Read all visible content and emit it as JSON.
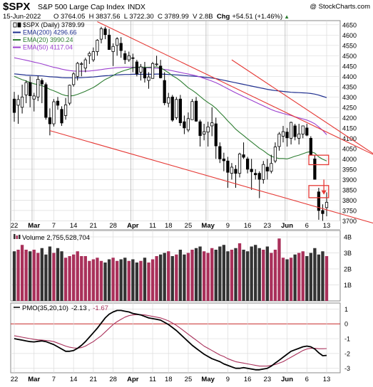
{
  "header": {
    "symbol": "$SPX",
    "name": "S&P 500 Large Cap Index",
    "exchange": "INDX",
    "copyright": "@ StockCharts.com",
    "date": "15-Jun-2022",
    "quote": "O 3764.05  H 3837.56  L 3722.30  C 3789.99  V 2.8B  ",
    "chg_label": "Chg",
    "chg_value": "+54.51 (+1.46%)",
    "chg_arrow": "▲"
  },
  "colors": {
    "up": "#ffffff",
    "down": "#000000",
    "ema200": "#1f2f8f",
    "ema20": "#2e7d32",
    "ema50": "#9b3fcf",
    "trend": "#e53935",
    "vol_up": "#a9305a",
    "vol_down": "#333333",
    "pmo": "#000000",
    "pmo_signal": "#a9305a",
    "zero": "#c62828",
    "grid": "#dcdcdc"
  },
  "chart_data": [
    {
      "type": "candlestick",
      "title": "$SPX S&P 500 Large Cap Index INDX",
      "legend": [
        {
          "label": "$SPX (Daily) 3789.99",
          "icon": "candle"
        },
        {
          "label": "EMA(200) 4296.66",
          "color": "#1f2f8f"
        },
        {
          "label": "EMA(20) 3990.24",
          "color": "#2e7d32"
        },
        {
          "label": "EMA(50) 4117.04",
          "color": "#9b3fcf"
        }
      ],
      "ylim": [
        3660,
        4670
      ],
      "yticks": [
        3700,
        3750,
        3800,
        3850,
        3900,
        3950,
        4000,
        4050,
        4100,
        4150,
        4200,
        4250,
        4300,
        4350,
        4400,
        4450,
        4500,
        4550,
        4600,
        4650
      ],
      "x_labels": [
        "22",
        "Mar",
        "7",
        "14",
        "21",
        "28",
        "Apr",
        "11",
        "18",
        "25",
        "May",
        "9",
        "16",
        "23",
        "Jun",
        "6",
        "13"
      ],
      "x_label_days": [
        0,
        5,
        10,
        15,
        20,
        25,
        30,
        35,
        39,
        44,
        49,
        54,
        59,
        64,
        69,
        74,
        79
      ],
      "month_boundaries": [
        5,
        30,
        49,
        69
      ],
      "ohlc": [
        [
          4290,
          4325,
          4180,
          4225
        ],
        [
          4260,
          4310,
          4170,
          4288
        ],
        [
          4250,
          4360,
          4220,
          4300
        ],
        [
          4310,
          4380,
          4270,
          4370
        ],
        [
          4370,
          4400,
          4250,
          4306
        ],
        [
          4290,
          4320,
          4230,
          4305
        ],
        [
          4300,
          4402,
          4280,
          4386
        ],
        [
          4380,
          4390,
          4270,
          4363
        ],
        [
          4360,
          4370,
          4190,
          4201
        ],
        [
          4200,
          4245,
          4114,
          4170
        ],
        [
          4170,
          4290,
          4157,
          4277
        ],
        [
          4280,
          4300,
          4238,
          4260
        ],
        [
          4240,
          4255,
          4160,
          4174
        ],
        [
          4210,
          4295,
          4190,
          4262
        ],
        [
          4270,
          4360,
          4260,
          4357
        ],
        [
          4360,
          4420,
          4350,
          4412
        ],
        [
          4400,
          4470,
          4380,
          4463
        ],
        [
          4460,
          4470,
          4400,
          4461
        ],
        [
          4440,
          4490,
          4420,
          4480
        ],
        [
          4500,
          4520,
          4460,
          4511
        ],
        [
          4480,
          4540,
          4470,
          4520
        ],
        [
          4520,
          4580,
          4500,
          4575
        ],
        [
          4580,
          4640,
          4560,
          4631
        ],
        [
          4630,
          4640,
          4580,
          4602
        ],
        [
          4600,
          4630,
          4530,
          4530
        ],
        [
          4520,
          4560,
          4450,
          4545
        ],
        [
          4550,
          4590,
          4500,
          4582
        ],
        [
          4560,
          4590,
          4490,
          4525
        ],
        [
          4510,
          4525,
          4460,
          4481
        ],
        [
          4480,
          4520,
          4470,
          4500
        ],
        [
          4490,
          4510,
          4420,
          4488
        ],
        [
          4470,
          4480,
          4400,
          4412
        ],
        [
          4420,
          4460,
          4380,
          4446
        ],
        [
          4440,
          4470,
          4370,
          4392
        ],
        [
          4380,
          4420,
          4340,
          4397
        ],
        [
          4390,
          4470,
          4390,
          4462
        ],
        [
          4460,
          4500,
          4450,
          4460
        ],
        [
          4450,
          4480,
          4390,
          4393
        ],
        [
          4380,
          4420,
          4260,
          4272
        ],
        [
          4270,
          4320,
          4250,
          4297
        ],
        [
          4300,
          4310,
          4180,
          4188
        ],
        [
          4200,
          4300,
          4190,
          4288
        ],
        [
          4290,
          4310,
          4160,
          4175
        ],
        [
          4180,
          4210,
          4120,
          4150
        ],
        [
          4140,
          4225,
          4130,
          4195
        ],
        [
          4190,
          4290,
          4190,
          4278
        ],
        [
          4280,
          4300,
          4180,
          4183
        ],
        [
          4180,
          4190,
          4060,
          4113
        ],
        [
          4120,
          4170,
          4090,
          4132
        ],
        [
          4130,
          4180,
          4060,
          4155
        ],
        [
          4160,
          4250,
          4110,
          4175
        ],
        [
          4170,
          4200,
          4000,
          4063
        ],
        [
          4060,
          4080,
          3980,
          4000
        ],
        [
          4000,
          4030,
          3940,
          3991
        ],
        [
          3990,
          4010,
          3860,
          3935
        ],
        [
          3930,
          3980,
          3900,
          3960
        ],
        [
          3950,
          3970,
          3860,
          3930
        ],
        [
          3930,
          4030,
          3910,
          4024
        ],
        [
          4020,
          4080,
          4000,
          4008
        ],
        [
          4000,
          4010,
          3930,
          3950
        ],
        [
          3950,
          4000,
          3850,
          3938
        ],
        [
          3930,
          3950,
          3900,
          3923
        ],
        [
          3930,
          3940,
          3810,
          3901
        ],
        [
          3900,
          3990,
          3880,
          3973
        ],
        [
          3960,
          4000,
          3900,
          3941
        ],
        [
          3940,
          4020,
          3930,
          3978
        ],
        [
          3990,
          4080,
          3980,
          4058
        ],
        [
          4060,
          4130,
          4040,
          4121
        ],
        [
          4110,
          4160,
          4080,
          4132
        ],
        [
          4130,
          4150,
          4060,
          4102
        ],
        [
          4100,
          4180,
          4070,
          4177
        ],
        [
          4160,
          4170,
          4090,
          4108
        ],
        [
          4100,
          4170,
          4070,
          4121
        ],
        [
          4120,
          4150,
          4100,
          4160
        ],
        [
          4150,
          4170,
          4110,
          4115
        ],
        [
          4100,
          4110,
          4017,
          4018
        ],
        [
          4000,
          4020,
          3900,
          3901
        ],
        [
          3840,
          3860,
          3705,
          3750
        ],
        [
          3750,
          3780,
          3700,
          3735
        ],
        [
          3764,
          3838,
          3722,
          3790
        ]
      ],
      "ema200": [
        4412,
        4410,
        4408,
        4406,
        4405,
        4404,
        4403,
        4402,
        4400,
        4398,
        4397,
        4396,
        4394,
        4393,
        4393,
        4393,
        4393,
        4394,
        4395,
        4396,
        4397,
        4399,
        4401,
        4403,
        4404,
        4406,
        4407,
        4408,
        4409,
        4409,
        4410,
        4410,
        4410,
        4410,
        4410,
        4410,
        4411,
        4411,
        4410,
        4409,
        4408,
        4407,
        4406,
        4404,
        4402,
        4401,
        4400,
        4398,
        4396,
        4394,
        4392,
        4389,
        4385,
        4381,
        4377,
        4373,
        4369,
        4365,
        4361,
        4357,
        4353,
        4349,
        4345,
        4341,
        4337,
        4334,
        4331,
        4329,
        4327,
        4325,
        4323,
        4322,
        4321,
        4320,
        4319,
        4317,
        4314,
        4309,
        4303,
        4297
      ],
      "ema50": [
        4490,
        4486,
        4482,
        4478,
        4474,
        4469,
        4465,
        4460,
        4455,
        4449,
        4444,
        4440,
        4435,
        4431,
        4428,
        4426,
        4425,
        4425,
        4425,
        4426,
        4428,
        4430,
        4433,
        4436,
        4438,
        4440,
        4442,
        4443,
        4444,
        4444,
        4444,
        4444,
        4443,
        4442,
        4441,
        4440,
        4439,
        4437,
        4434,
        4431,
        4427,
        4423,
        4419,
        4415,
        4411,
        4407,
        4403,
        4397,
        4390,
        4384,
        4377,
        4369,
        4360,
        4350,
        4340,
        4330,
        4320,
        4311,
        4302,
        4293,
        4284,
        4275,
        4266,
        4257,
        4248,
        4239,
        4232,
        4226,
        4220,
        4215,
        4210,
        4204,
        4199,
        4194,
        4188,
        4180,
        4170,
        4155,
        4138,
        4117
      ],
      "ema20": [
        4400,
        4392,
        4384,
        4378,
        4370,
        4364,
        4360,
        4355,
        4347,
        4337,
        4330,
        4322,
        4313,
        4307,
        4305,
        4307,
        4313,
        4320,
        4328,
        4337,
        4346,
        4358,
        4372,
        4385,
        4394,
        4404,
        4415,
        4423,
        4429,
        4435,
        4441,
        4444,
        4445,
        4444,
        4444,
        4445,
        4446,
        4441,
        4430,
        4418,
        4403,
        4392,
        4378,
        4362,
        4345,
        4333,
        4319,
        4303,
        4287,
        4273,
        4261,
        4245,
        4225,
        4206,
        4184,
        4165,
        4144,
        4128,
        4113,
        4097,
        4082,
        4067,
        4052,
        4040,
        4025,
        4013,
        4006,
        4002,
        4002,
        4000,
        4006,
        4013,
        4018,
        4025,
        4032,
        4035,
        4028,
        4010,
        3998,
        3990
      ],
      "trendlines": [
        {
          "from": [
            21,
            4665
          ],
          "to": [
            92,
            4010
          ]
        },
        {
          "from": [
            55,
            4480
          ],
          "to": [
            92,
            4010
          ]
        },
        {
          "from": [
            9,
            4137
          ],
          "to": [
            92,
            3682
          ]
        }
      ],
      "annotations": [
        {
          "type": "box",
          "x": [
            74.5,
            79.5
          ],
          "y": [
            3972,
            4018
          ]
        },
        {
          "type": "box",
          "x": [
            74.5,
            79.5
          ],
          "y": [
            3812,
            3871
          ]
        },
        {
          "type": "arrow",
          "x": 78.3,
          "y_from": 3900,
          "y_to": 3830
        }
      ]
    },
    {
      "type": "bar",
      "title": "Volume",
      "legend": [
        {
          "label": "Volume 2,755,528,704"
        }
      ],
      "ylim": [
        0,
        4400000000
      ],
      "yticks": [
        1000000000,
        2000000000,
        3000000000,
        4000000000
      ],
      "ytick_labels": [
        "1B",
        "2B",
        "3B",
        "4B"
      ],
      "values": [
        3.1,
        3.2,
        3.5,
        3.2,
        3.1,
        3.2,
        3.0,
        3.3,
        2.9,
        3.4,
        3.0,
        3.3,
        3.1,
        2.7,
        2.8,
        2.9,
        3.1,
        2.8,
        2.8,
        2.5,
        2.6,
        2.7,
        2.5,
        2.4,
        2.6,
        2.7,
        2.5,
        2.6,
        2.7,
        2.5,
        2.6,
        2.4,
        2.5,
        2.7,
        2.4,
        2.6,
        2.8,
        2.9,
        3.0,
        3.1,
        2.8,
        2.9,
        3.2,
        2.9,
        3.0,
        3.2,
        3.3,
        3.4,
        3.1,
        3.0,
        3.3,
        3.2,
        3.4,
        3.5,
        3.1,
        3.2,
        3.3,
        3.6,
        3.2,
        3.1,
        3.4,
        3.5,
        3.3,
        3.2,
        3.4,
        3.0,
        3.2,
        3.9,
        2.7,
        2.6,
        2.7,
        2.9,
        3.0,
        3.1,
        2.8,
        3.0,
        3.3,
        2.9,
        3.1,
        2.8
      ],
      "value_unit": "billion shares"
    },
    {
      "type": "line",
      "title": "PMO",
      "legend": [
        {
          "label": "PMO(35,20,10)",
          "value": "-2.13",
          "value_color": "#000000"
        },
        {
          "label": "",
          "value": "-1.67",
          "value_color": "#a9305a"
        }
      ],
      "ylim": [
        -3.3,
        1.4
      ],
      "yticks": [
        -3,
        -2,
        -1,
        0,
        1
      ],
      "pmo": [
        -1.0,
        -1.05,
        -1.1,
        -1.15,
        -1.2,
        -1.22,
        -1.18,
        -1.15,
        -1.2,
        -1.3,
        -1.4,
        -1.55,
        -1.7,
        -1.85,
        -1.85,
        -1.8,
        -1.65,
        -1.45,
        -1.2,
        -0.9,
        -0.6,
        -0.3,
        0.05,
        0.4,
        0.65,
        0.8,
        0.9,
        0.9,
        0.85,
        0.8,
        0.7,
        0.65,
        0.6,
        0.5,
        0.4,
        0.35,
        0.3,
        0.25,
        0.1,
        -0.05,
        -0.25,
        -0.45,
        -0.7,
        -0.95,
        -1.2,
        -1.45,
        -1.65,
        -1.85,
        -2.05,
        -2.2,
        -2.35,
        -2.45,
        -2.55,
        -2.7,
        -2.8,
        -2.9,
        -3.0,
        -3.0,
        -2.95,
        -3.0,
        -3.05,
        -3.1,
        -3.1,
        -3.05,
        -3.0,
        -2.85,
        -2.65,
        -2.45,
        -2.25,
        -2.05,
        -1.85,
        -1.75,
        -1.65,
        -1.55,
        -1.5,
        -1.55,
        -1.7,
        -1.95,
        -2.15,
        -2.13
      ],
      "signal": [
        -0.8,
        -0.85,
        -0.9,
        -0.95,
        -1.0,
        -1.05,
        -1.08,
        -1.1,
        -1.12,
        -1.15,
        -1.2,
        -1.3,
        -1.4,
        -1.5,
        -1.58,
        -1.62,
        -1.64,
        -1.6,
        -1.5,
        -1.35,
        -1.2,
        -1.0,
        -0.8,
        -0.55,
        -0.3,
        -0.05,
        0.15,
        0.3,
        0.45,
        0.55,
        0.6,
        0.62,
        0.62,
        0.6,
        0.55,
        0.5,
        0.45,
        0.4,
        0.3,
        0.2,
        0.05,
        -0.1,
        -0.3,
        -0.5,
        -0.7,
        -0.9,
        -1.1,
        -1.3,
        -1.5,
        -1.65,
        -1.8,
        -1.95,
        -2.1,
        -2.2,
        -2.35,
        -2.45,
        -2.55,
        -2.6,
        -2.65,
        -2.7,
        -2.75,
        -2.8,
        -2.85,
        -2.85,
        -2.85,
        -2.8,
        -2.75,
        -2.65,
        -2.55,
        -2.4,
        -2.25,
        -2.1,
        -1.95,
        -1.8,
        -1.7,
        -1.65,
        -1.65,
        -1.68,
        -1.68,
        -1.67
      ]
    }
  ]
}
